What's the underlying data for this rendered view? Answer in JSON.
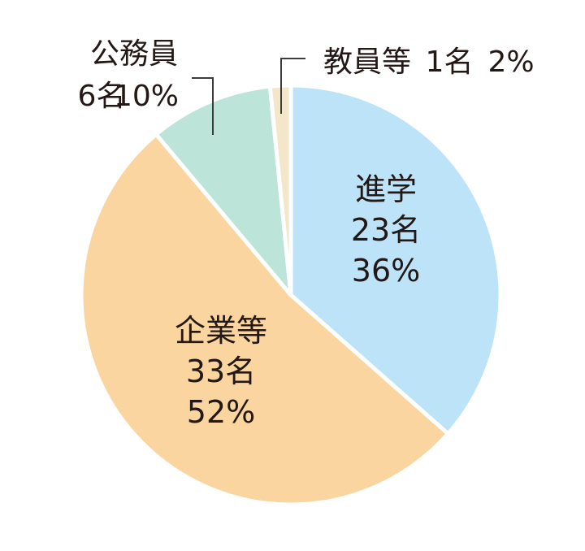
{
  "chart_data": {
    "type": "pie",
    "title": "",
    "slices": [
      {
        "name": "進学",
        "count_label": "23名",
        "percent_label": "36%",
        "value": 23,
        "color": "#bde3f8"
      },
      {
        "name": "企業等",
        "count_label": "33名",
        "percent_label": "52%",
        "value": 33,
        "color": "#fad5a0"
      },
      {
        "name": "公務員",
        "count_label": "6名",
        "percent_label": "10%",
        "value": 6,
        "color": "#bde4d8"
      },
      {
        "name": "教員等",
        "count_label": "1名",
        "percent_label": "2%",
        "value": 1,
        "color": "#f3e6c9"
      }
    ],
    "start_angle_deg": 0,
    "direction": "clockwise",
    "separator_color": "#ffffff"
  }
}
